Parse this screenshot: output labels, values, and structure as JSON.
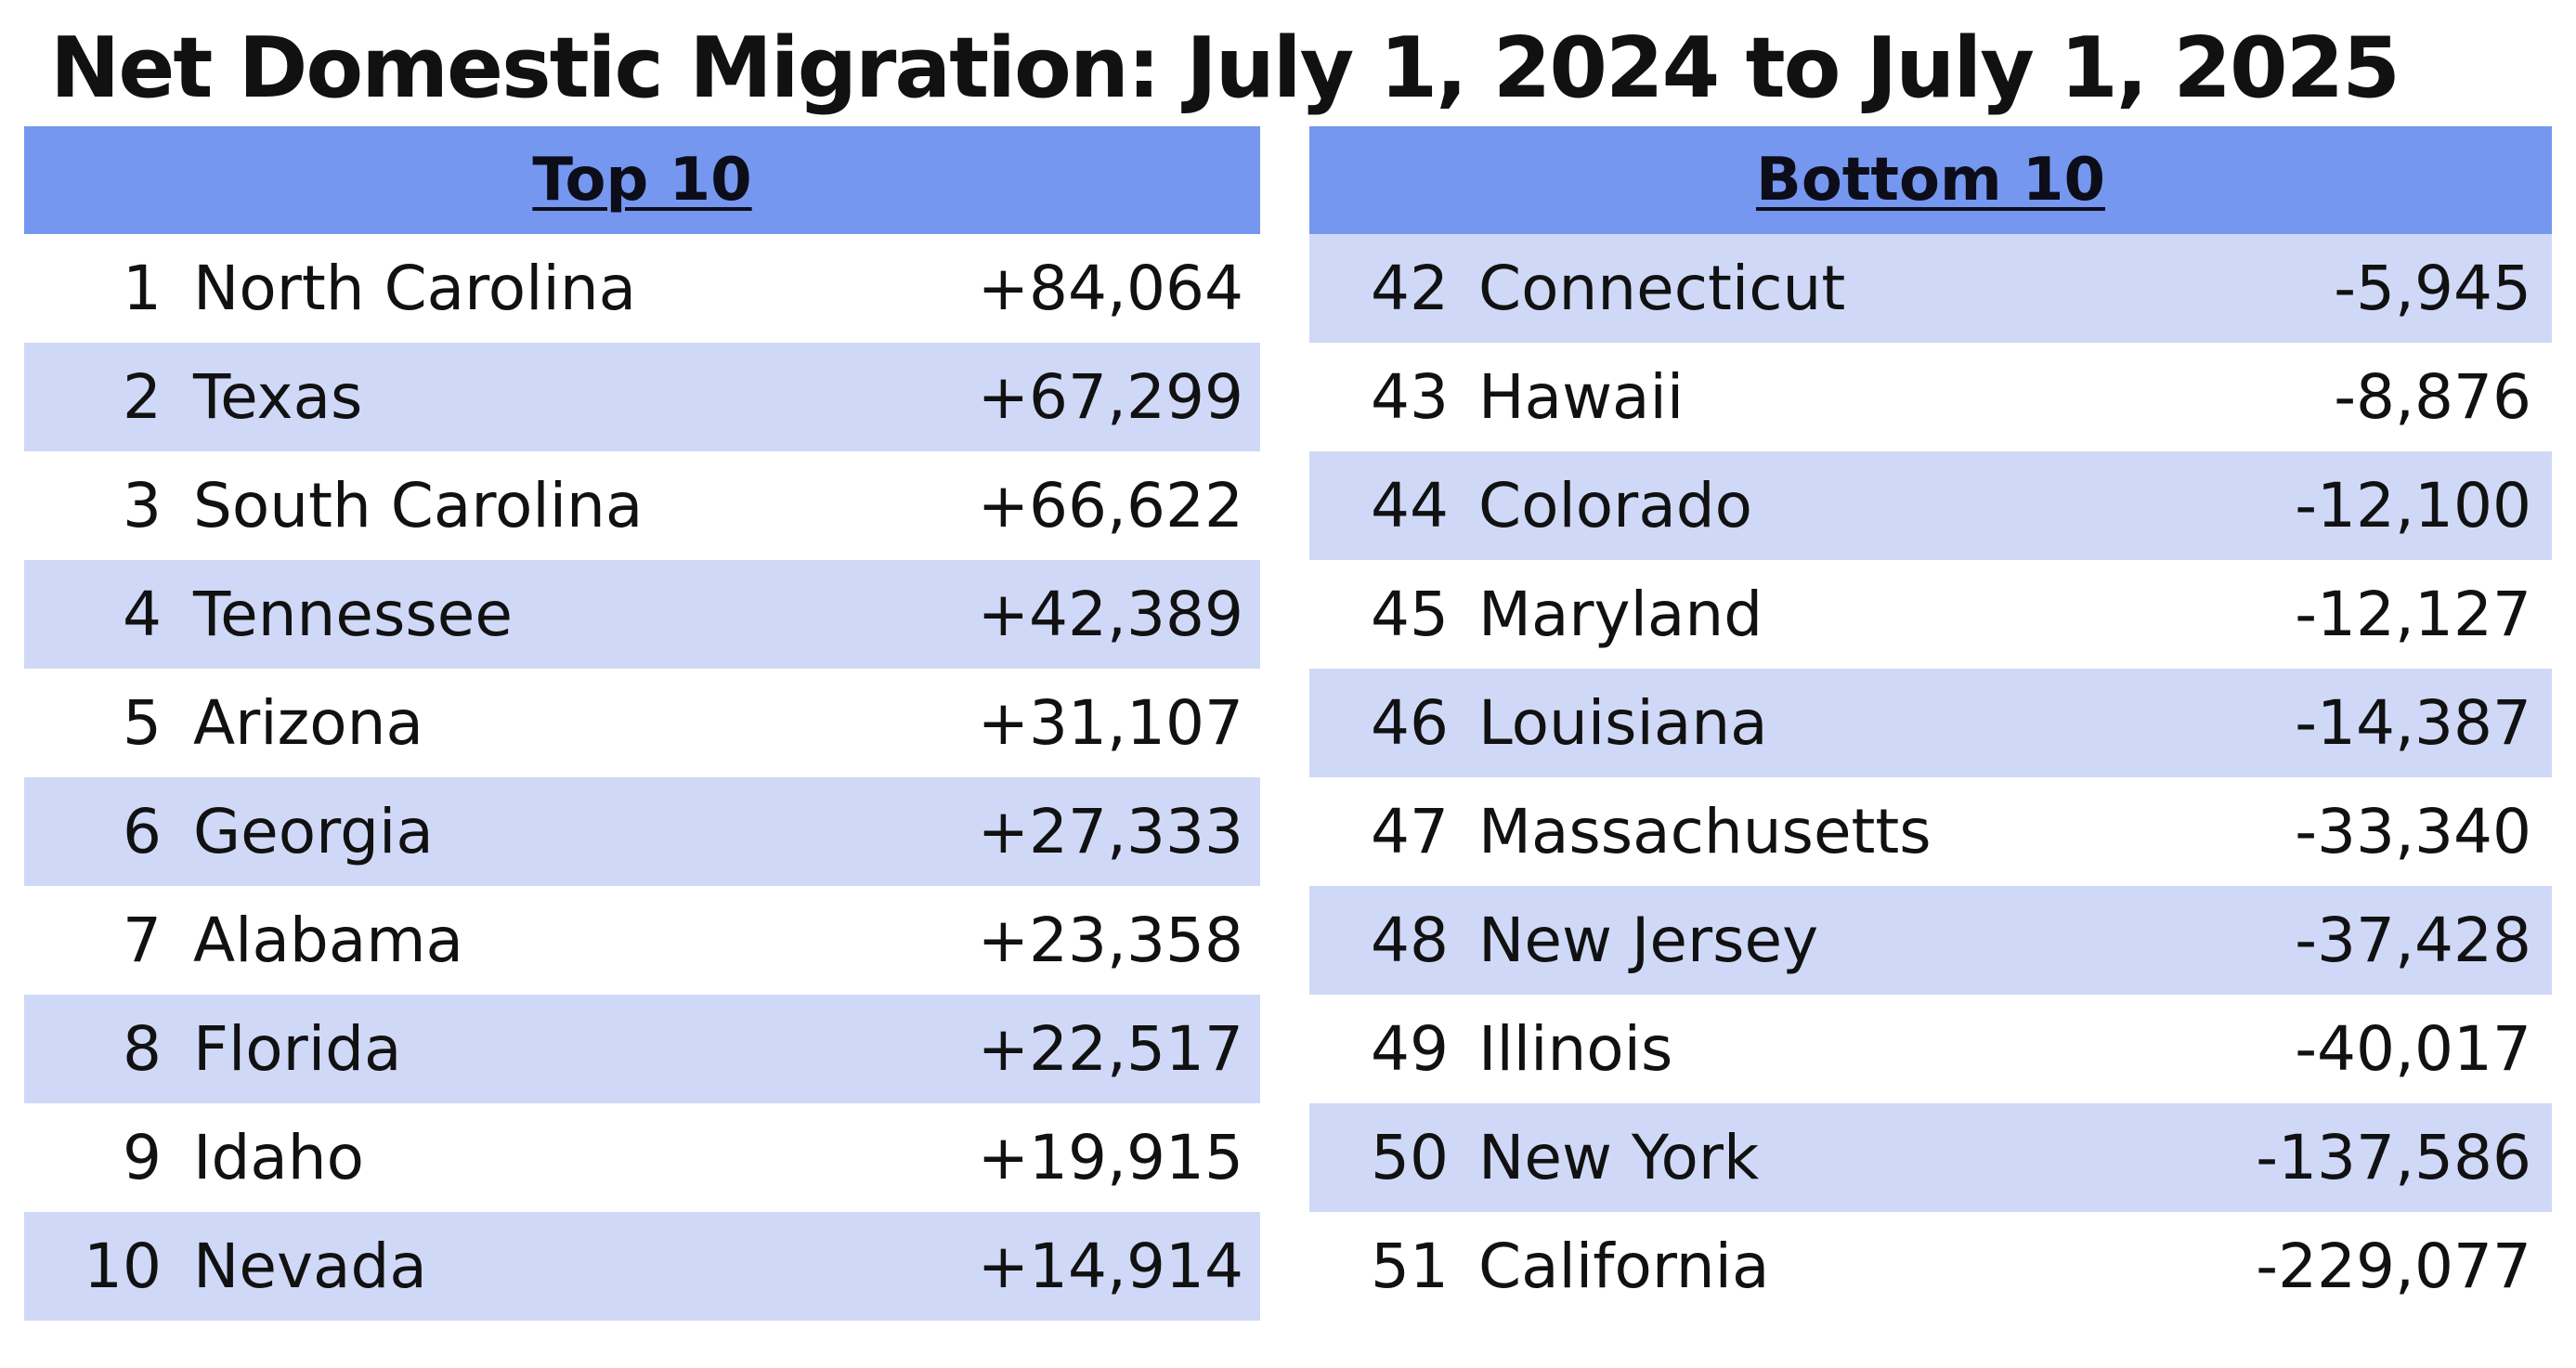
{
  "title": "Net Domestic Migration: July 1, 2024 to July 1, 2025",
  "colors": {
    "header_fill": "#7597f0",
    "band_fill": "#cfd9f7",
    "background": "#ffffff",
    "text": "#111111"
  },
  "chart_data": {
    "type": "table",
    "title": "Net Domestic Migration: July 1, 2024 to July 1, 2025",
    "tables": [
      {
        "heading": "Top 10",
        "rows": [
          {
            "rank": "1",
            "state": "North Carolina",
            "value": "+84,064"
          },
          {
            "rank": "2",
            "state": "Texas",
            "value": "+67,299"
          },
          {
            "rank": "3",
            "state": "South Carolina",
            "value": "+66,622"
          },
          {
            "rank": "4",
            "state": "Tennessee",
            "value": "+42,389"
          },
          {
            "rank": "5",
            "state": "Arizona",
            "value": "+31,107"
          },
          {
            "rank": "6",
            "state": "Georgia",
            "value": "+27,333"
          },
          {
            "rank": "7",
            "state": "Alabama",
            "value": "+23,358"
          },
          {
            "rank": "8",
            "state": "Florida",
            "value": "+22,517"
          },
          {
            "rank": "9",
            "state": "Idaho",
            "value": "+19,915"
          },
          {
            "rank": "10",
            "state": "Nevada",
            "value": "+14,914"
          }
        ]
      },
      {
        "heading": "Bottom 10",
        "rows": [
          {
            "rank": "42",
            "state": "Connecticut",
            "value": "-5,945"
          },
          {
            "rank": "43",
            "state": "Hawaii",
            "value": "-8,876"
          },
          {
            "rank": "44",
            "state": "Colorado",
            "value": "-12,100"
          },
          {
            "rank": "45",
            "state": "Maryland",
            "value": "-12,127"
          },
          {
            "rank": "46",
            "state": "Louisiana",
            "value": "-14,387"
          },
          {
            "rank": "47",
            "state": "Massachusetts",
            "value": "-33,340"
          },
          {
            "rank": "48",
            "state": "New Jersey",
            "value": "-37,428"
          },
          {
            "rank": "49",
            "state": "Illinois",
            "value": "-40,017"
          },
          {
            "rank": "50",
            "state": "New York",
            "value": "-137,586"
          },
          {
            "rank": "51",
            "state": "California",
            "value": "-229,077"
          }
        ]
      }
    ]
  }
}
